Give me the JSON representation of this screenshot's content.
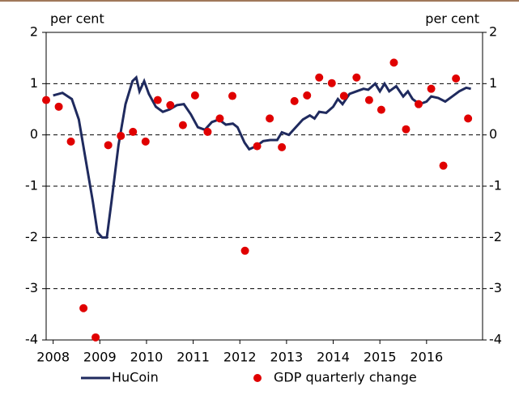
{
  "chart_data": {
    "type": "line",
    "y_label_left": "per cent",
    "y_label_right": "per cent",
    "xlim": [
      2007.85,
      2017.2
    ],
    "xticks": [
      2008,
      2009,
      2010,
      2011,
      2012,
      2013,
      2014,
      2015,
      2016
    ],
    "ylim": [
      -4,
      2
    ],
    "yticks": [
      2,
      1,
      0,
      -1,
      -2,
      -3,
      -4
    ],
    "grid": true,
    "legend": "bottom",
    "series": [
      {
        "name": "HuCoin",
        "type": "line",
        "color": "#1f2a5e",
        "x": [
          2008.0,
          2008.2,
          2008.4,
          2008.55,
          2008.7,
          2008.85,
          2008.95,
          2009.05,
          2009.15,
          2009.25,
          2009.4,
          2009.55,
          2009.7,
          2009.78,
          2009.85,
          2009.95,
          2010.05,
          2010.2,
          2010.35,
          2010.5,
          2010.65,
          2010.8,
          2010.95,
          2011.1,
          2011.25,
          2011.4,
          2011.55,
          2011.7,
          2011.85,
          2011.95,
          2012.1,
          2012.2,
          2012.35,
          2012.5,
          2012.65,
          2012.8,
          2012.9,
          2013.05,
          2013.2,
          2013.35,
          2013.5,
          2013.6,
          2013.7,
          2013.85,
          2014.0,
          2014.1,
          2014.2,
          2014.35,
          2014.5,
          2014.65,
          2014.75,
          2014.9,
          2015.0,
          2015.1,
          2015.2,
          2015.35,
          2015.5,
          2015.6,
          2015.7,
          2015.85,
          2016.0,
          2016.1,
          2016.25,
          2016.4,
          2016.55,
          2016.7,
          2016.85,
          2016.95
        ],
        "values": [
          0.77,
          0.82,
          0.7,
          0.3,
          -0.5,
          -1.3,
          -1.9,
          -2.0,
          -2.0,
          -1.3,
          -0.2,
          0.6,
          1.05,
          1.12,
          0.85,
          1.05,
          0.8,
          0.55,
          0.45,
          0.5,
          0.58,
          0.6,
          0.4,
          0.15,
          0.1,
          0.25,
          0.3,
          0.2,
          0.22,
          0.15,
          -0.15,
          -0.28,
          -0.22,
          -0.12,
          -0.1,
          -0.1,
          0.05,
          0.0,
          0.15,
          0.3,
          0.38,
          0.32,
          0.45,
          0.43,
          0.55,
          0.7,
          0.6,
          0.8,
          0.85,
          0.9,
          0.88,
          1.0,
          0.85,
          1.0,
          0.85,
          0.95,
          0.75,
          0.85,
          0.7,
          0.6,
          0.65,
          0.75,
          0.72,
          0.65,
          0.75,
          0.85,
          0.92,
          0.9
        ]
      },
      {
        "name": "GDP quarterly change",
        "type": "scatter",
        "color": "#e00000",
        "x": [
          2007.85,
          2008.12,
          2008.38,
          2008.65,
          2008.91,
          2009.18,
          2009.45,
          2009.71,
          2009.98,
          2010.24,
          2010.51,
          2010.78,
          2011.04,
          2011.31,
          2011.57,
          2011.84,
          2012.11,
          2012.37,
          2012.64,
          2012.9,
          2013.17,
          2013.44,
          2013.7,
          2013.97,
          2014.23,
          2014.5,
          2014.77,
          2015.03,
          2015.3,
          2015.56,
          2015.83,
          2016.1,
          2016.36,
          2016.63,
          2016.89
        ],
        "values": [
          0.68,
          0.55,
          -0.13,
          -3.38,
          -3.95,
          -0.2,
          -0.02,
          0.06,
          -0.13,
          0.68,
          0.58,
          0.19,
          0.77,
          0.06,
          0.32,
          0.76,
          -2.26,
          -0.22,
          0.32,
          -0.24,
          0.66,
          0.77,
          1.12,
          1.01,
          0.76,
          1.12,
          0.68,
          0.49,
          1.41,
          0.11,
          0.6,
          0.9,
          -0.6,
          1.1,
          0.32
        ]
      }
    ]
  }
}
